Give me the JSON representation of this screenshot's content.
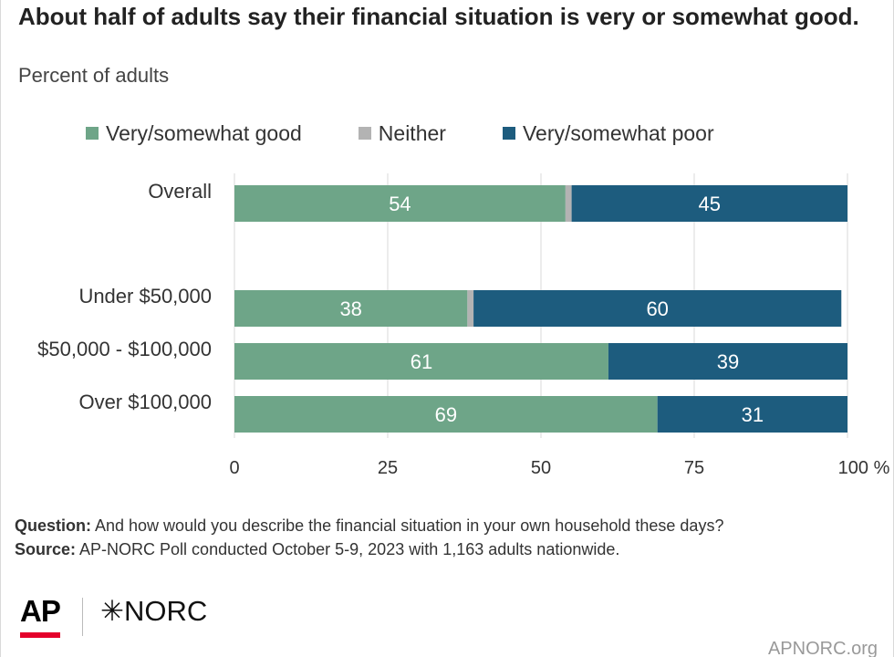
{
  "title": "About half of adults say their financial situation is very or somewhat good.",
  "subtitle": "Percent of adults",
  "legend": {
    "good": "Very/somewhat good",
    "neither": "Neither",
    "poor": "Very/somewhat poor"
  },
  "colors": {
    "good": "#6ea588",
    "neither": "#b3b3b3",
    "poor": "#1d5c7e",
    "grid": "#d9d9d9"
  },
  "chart_data": {
    "type": "bar",
    "orientation": "horizontal",
    "stacked": true,
    "categories": [
      "Overall",
      "Under $50,000",
      "$50,000 - $100,000",
      "Over $100,000"
    ],
    "series": [
      {
        "name": "Very/somewhat good",
        "values": [
          54,
          38,
          61,
          69
        ]
      },
      {
        "name": "Neither",
        "values": [
          1,
          1,
          0,
          0
        ]
      },
      {
        "name": "Very/somewhat poor",
        "values": [
          45,
          60,
          39,
          31
        ]
      }
    ],
    "xlim": [
      0,
      100
    ],
    "xticks": [
      "0",
      "25",
      "50",
      "75",
      "100"
    ],
    "xtick_suffix": "%",
    "grid": true,
    "legend_position": "top"
  },
  "footer": {
    "question_label": "Question:",
    "question_text": " And how would you describe the financial situation in your own household these days?",
    "source_label": "Source:",
    "source_text": " AP-NORC Poll conducted October 5-9, 2023 with 1,163 adults nationwide."
  },
  "branding": {
    "ap": "AP",
    "norc": "✳NORC",
    "site": "APNORC.org"
  }
}
